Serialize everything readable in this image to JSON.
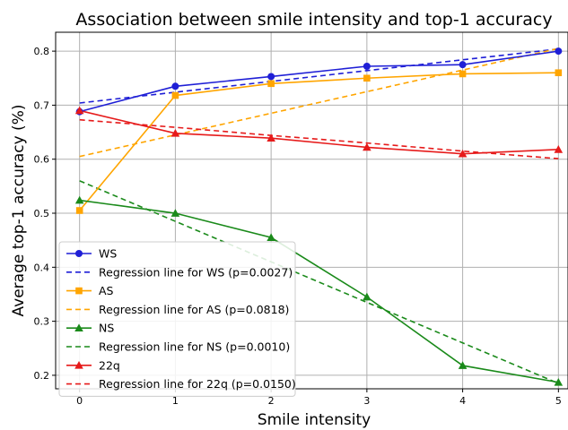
{
  "chart_data": {
    "type": "line",
    "title": "Association between smile intensity and top-1 accuracy",
    "xlabel": "Smile intensity",
    "ylabel": "Average top-1 accuracy (%)",
    "xlim": [
      -0.25,
      5.1
    ],
    "ylim": [
      0.175,
      0.835
    ],
    "x_ticks": [
      0,
      1,
      2,
      3,
      4,
      5
    ],
    "y_ticks": [
      0.2,
      0.3,
      0.4,
      0.5,
      0.6,
      0.7,
      0.8
    ],
    "grid": true,
    "legend_position": "lower-left",
    "x": [
      0,
      1,
      2,
      3,
      4,
      5
    ],
    "series": [
      {
        "name": "WS",
        "color": "#1f1fd6",
        "marker": "circle",
        "style": "solid",
        "values": [
          0.688,
          0.735,
          0.753,
          0.772,
          0.775,
          0.8
        ]
      },
      {
        "name": "Regression line for WS (p=0.0027)",
        "color": "#1f1fd6",
        "marker": "none",
        "style": "dashed",
        "values": [
          0.704,
          0.724,
          0.744,
          0.764,
          0.784,
          0.804
        ]
      },
      {
        "name": "AS",
        "color": "#ffa500",
        "marker": "square",
        "style": "solid",
        "values": [
          0.505,
          0.718,
          0.74,
          0.75,
          0.758,
          0.76
        ]
      },
      {
        "name": "Regression line for AS (p=0.0818)",
        "color": "#ffa500",
        "marker": "none",
        "style": "dashed",
        "values": [
          0.605,
          0.645,
          0.685,
          0.725,
          0.765,
          0.805
        ]
      },
      {
        "name": "NS",
        "color": "#1a8a1a",
        "marker": "triangle",
        "style": "solid",
        "values": [
          0.524,
          0.5,
          0.455,
          0.345,
          0.218,
          0.187
        ]
      },
      {
        "name": "Regression line for NS (p=0.0010)",
        "color": "#1a8a1a",
        "marker": "none",
        "style": "dashed",
        "values": [
          0.56,
          0.485,
          0.41,
          0.335,
          0.26,
          0.185
        ]
      },
      {
        "name": "22q",
        "color": "#e61a1a",
        "marker": "triangle",
        "style": "solid",
        "values": [
          0.69,
          0.648,
          0.639,
          0.622,
          0.61,
          0.618
        ]
      },
      {
        "name": "Regression line for 22q (p=0.0150)",
        "color": "#e61a1a",
        "marker": "none",
        "style": "dashed",
        "values": [
          0.673,
          0.659,
          0.644,
          0.63,
          0.615,
          0.601
        ]
      }
    ]
  }
}
